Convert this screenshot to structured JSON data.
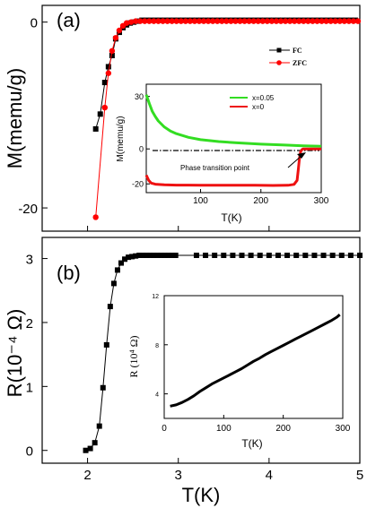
{
  "chart_data": [
    {
      "id": "a",
      "type": "scatter",
      "panel_label": "(a)",
      "ylabel": "M(memu/g)",
      "xlim": [
        1.5,
        5
      ],
      "ylim": [
        -22.5,
        1.8
      ],
      "yticks": [
        0,
        -20
      ],
      "xticks_labeled": false,
      "legend_position": "top-right",
      "series": [
        {
          "name": "FC",
          "color": "#000000",
          "marker": "square",
          "x": [
            2.09,
            2.14,
            2.19,
            2.23,
            2.27,
            2.31,
            2.35,
            2.39,
            2.43,
            2.47,
            2.51,
            2.55,
            2.6,
            2.65,
            2.7,
            2.75,
            2.8,
            2.85,
            2.9,
            2.95,
            3.0,
            3.05,
            3.1,
            3.15,
            3.2,
            3.25,
            3.3,
            3.35,
            3.4,
            3.45,
            3.5,
            3.55,
            3.6,
            3.65,
            3.7,
            3.75,
            3.8,
            3.85,
            3.9,
            3.95,
            4.0,
            4.05,
            4.1,
            4.15,
            4.2,
            4.25,
            4.3,
            4.35,
            4.4,
            4.45,
            4.5,
            4.55,
            4.6,
            4.65,
            4.7,
            4.75,
            4.8,
            4.85,
            4.9,
            4.95
          ],
          "y": [
            -11.5,
            -9.9,
            -6.5,
            -4.8,
            -3.6,
            -1.8,
            -1.1,
            -0.6,
            -0.3,
            -0.1,
            0.0,
            0.1,
            0.2,
            0.2,
            0.2,
            0.2,
            0.2,
            0.2,
            0.2,
            0.2,
            0.2,
            0.2,
            0.2,
            0.2,
            0.2,
            0.2,
            0.2,
            0.2,
            0.2,
            0.2,
            0.2,
            0.2,
            0.2,
            0.2,
            0.2,
            0.2,
            0.2,
            0.2,
            0.2,
            0.2,
            0.2,
            0.2,
            0.2,
            0.2,
            0.2,
            0.2,
            0.2,
            0.2,
            0.2,
            0.2,
            0.2,
            0.2,
            0.2,
            0.2,
            0.2,
            0.2,
            0.2,
            0.2,
            0.2,
            0.2
          ]
        },
        {
          "name": "ZFC",
          "color": "#ff0000",
          "marker": "circle",
          "x": [
            2.09,
            2.19,
            2.23,
            2.27,
            2.31,
            2.35,
            2.39,
            2.43,
            2.48,
            2.53,
            2.58,
            2.63,
            2.68,
            2.73,
            2.78,
            2.83,
            2.88,
            2.93,
            2.98,
            3.03,
            3.08,
            3.13,
            3.18,
            3.23,
            3.28,
            3.33,
            3.38,
            3.43,
            3.48,
            3.53,
            3.58,
            3.63,
            3.68,
            3.73,
            3.78,
            3.83,
            3.88,
            3.93,
            3.98,
            4.03,
            4.08,
            4.13,
            4.18,
            4.23,
            4.28,
            4.33,
            4.38,
            4.43,
            4.48,
            4.53,
            4.58,
            4.63,
            4.68,
            4.73,
            4.78,
            4.83,
            4.88,
            4.93,
            4.98
          ],
          "y": [
            -21.0,
            -9.2,
            -5.5,
            -3.1,
            -1.7,
            -0.9,
            -0.4,
            -0.1,
            0.0,
            0.1,
            0.1,
            0.1,
            0.1,
            0.1,
            0.1,
            0.1,
            0.1,
            0.1,
            0.1,
            0.1,
            0.1,
            0.1,
            0.1,
            0.1,
            0.1,
            0.1,
            0.1,
            0.1,
            0.1,
            0.1,
            0.1,
            0.1,
            0.1,
            0.1,
            0.1,
            0.1,
            0.1,
            0.1,
            0.1,
            0.1,
            0.1,
            0.1,
            0.1,
            0.1,
            0.1,
            0.1,
            0.1,
            0.1,
            0.1,
            0.1,
            0.1,
            0.1,
            0.1,
            0.1,
            0.1,
            0.1,
            0.1,
            0.1,
            0.1
          ]
        }
      ]
    },
    {
      "id": "a-inset",
      "type": "line",
      "xlabel": "T(K)",
      "ylabel": "M(memu/g)",
      "xlim": [
        10,
        300
      ],
      "ylim": [
        -25,
        37
      ],
      "xticks": [
        100,
        200,
        300
      ],
      "yticks": [
        30,
        0,
        -20
      ],
      "legend_position": "top-right",
      "annotation": "Phase transition point",
      "reference_line": {
        "y": 0,
        "style": "dash-dot"
      },
      "series": [
        {
          "name": "x=0.05",
          "color": "#33dd22",
          "x": [
            10,
            15,
            20,
            25,
            30,
            40,
            50,
            60,
            80,
            100,
            130,
            160,
            200,
            240,
            270,
            300
          ],
          "y": [
            31,
            26,
            21.5,
            18.5,
            16,
            12.5,
            10.2,
            8.7,
            6.6,
            5.3,
            4.2,
            3.5,
            2.7,
            2.2,
            1.8,
            1.5
          ]
        },
        {
          "name": "x=0",
          "color": "#ee1111",
          "x": [
            10,
            14,
            18,
            25,
            40,
            60,
            80,
            100,
            130,
            160,
            190,
            220,
            245,
            255,
            260,
            262,
            264,
            266,
            268,
            270,
            280,
            290,
            300
          ],
          "y": [
            -15,
            -18,
            -19.5,
            -20.2,
            -20.5,
            -20.7,
            -20.7,
            -20.8,
            -20.8,
            -20.8,
            -20.8,
            -20.9,
            -20.8,
            -20.3,
            -18,
            -12,
            -5,
            -1.5,
            -0.4,
            0,
            0,
            0,
            0
          ]
        }
      ]
    },
    {
      "id": "b",
      "type": "scatter",
      "panel_label": "(b)",
      "xlabel": "T(K)",
      "ylabel": "R(10⁻⁴ Ω)",
      "xlim": [
        1.5,
        5
      ],
      "ylim": [
        -0.2,
        3.33
      ],
      "xticks": [
        2,
        3,
        4,
        5
      ],
      "yticks": [
        0,
        1,
        2,
        3
      ],
      "series": [
        {
          "name": "R",
          "color": "#000000",
          "marker": "square",
          "x": [
            1.98,
            2.03,
            2.08,
            2.13,
            2.17,
            2.21,
            2.25,
            2.29,
            2.33,
            2.37,
            2.41,
            2.45,
            2.49,
            2.53,
            2.57,
            2.61,
            2.65,
            2.69,
            2.73,
            2.77,
            2.81,
            2.85,
            2.89,
            2.93,
            2.97,
            3.2,
            3.3,
            3.4,
            3.5,
            3.6,
            3.7,
            3.8,
            3.9,
            4.0,
            4.1,
            4.2,
            4.3,
            4.4,
            4.5,
            4.6,
            4.7,
            4.8,
            4.9,
            5.0
          ],
          "y": [
            0.0,
            0.03,
            0.12,
            0.38,
            0.98,
            1.65,
            2.25,
            2.61,
            2.82,
            2.93,
            2.99,
            3.02,
            3.03,
            3.04,
            3.05,
            3.05,
            3.05,
            3.05,
            3.05,
            3.05,
            3.05,
            3.05,
            3.05,
            3.05,
            3.05,
            3.05,
            3.05,
            3.05,
            3.05,
            3.05,
            3.05,
            3.05,
            3.05,
            3.05,
            3.05,
            3.05,
            3.05,
            3.05,
            3.05,
            3.05,
            3.05,
            3.05,
            3.05,
            3.05
          ]
        }
      ]
    },
    {
      "id": "b-inset",
      "type": "line",
      "xlabel": "T(K)",
      "ylabel": "R (10⁴ Ω)",
      "xlim": [
        0,
        300
      ],
      "ylim": [
        2,
        12
      ],
      "xticks": [
        0,
        100,
        200,
        300
      ],
      "yticks": [
        4,
        8,
        12
      ],
      "series": [
        {
          "name": "R",
          "color": "#000000",
          "x": [
            10,
            20,
            30,
            40,
            50,
            60,
            70,
            80,
            90,
            100,
            110,
            120,
            130,
            140,
            150,
            160,
            170,
            180,
            190,
            200,
            210,
            220,
            230,
            240,
            250,
            260,
            270,
            280,
            290,
            295
          ],
          "y": [
            3.0,
            3.1,
            3.3,
            3.55,
            3.85,
            4.2,
            4.5,
            4.8,
            5.05,
            5.3,
            5.55,
            5.8,
            6.05,
            6.35,
            6.65,
            6.9,
            7.2,
            7.45,
            7.7,
            7.95,
            8.2,
            8.45,
            8.7,
            8.95,
            9.2,
            9.45,
            9.7,
            9.95,
            10.25,
            10.45
          ]
        }
      ]
    }
  ]
}
